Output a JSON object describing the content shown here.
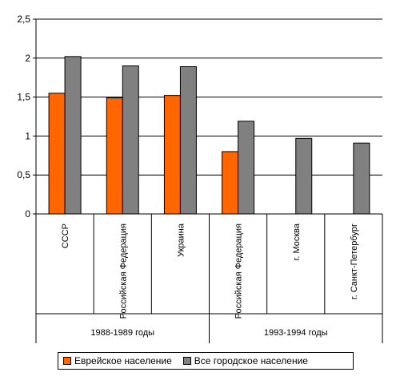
{
  "chart_data": {
    "type": "bar",
    "categories": [
      "СССР",
      "Российская Федерация",
      "Украина",
      "Российская Федерация",
      "г. Москва",
      "г. Санкт-Петербург"
    ],
    "groups": [
      {
        "label": "1988-1989 годы",
        "span": 3
      },
      {
        "label": "1993-1994 годы",
        "span": 3
      }
    ],
    "series": [
      {
        "name": "Еврейское население",
        "color": "#ff6600",
        "values": [
          1.55,
          1.49,
          1.52,
          0.8,
          null,
          null
        ]
      },
      {
        "name": "Все городское население",
        "color": "#808080",
        "values": [
          2.02,
          1.9,
          1.89,
          1.19,
          0.97,
          0.91
        ]
      }
    ],
    "ylim": [
      0,
      2.5
    ],
    "yticks": [
      "0",
      "0,5",
      "1",
      "1,5",
      "2",
      "2,5"
    ],
    "ytick_values": [
      0,
      0.5,
      1,
      1.5,
      2,
      2.5
    ],
    "grid": true,
    "legend": "bottom"
  }
}
